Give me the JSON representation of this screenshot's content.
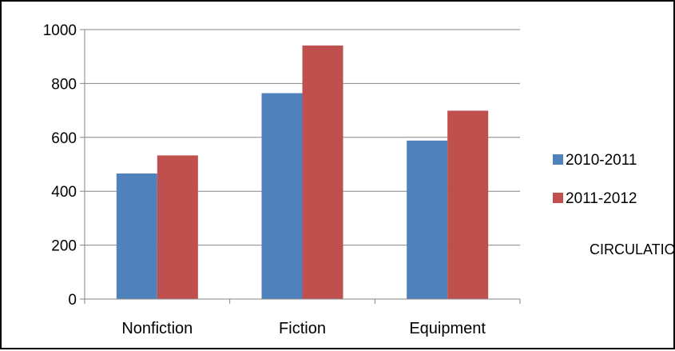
{
  "chart_data": {
    "type": "bar",
    "categories": [
      "Nonfiction",
      "Fiction",
      "Equipment"
    ],
    "series": [
      {
        "name": "2010-2011",
        "color": "#4F81BD",
        "values": [
          466,
          764,
          588
        ]
      },
      {
        "name": "2011-2012",
        "color": "#C0504D",
        "values": [
          533,
          941,
          699
        ]
      }
    ],
    "ylim": [
      0,
      1000
    ],
    "yticks": [
      0,
      200,
      400,
      600,
      800,
      1000
    ],
    "grid": true,
    "legend_placement": "right",
    "annotation": "CIRCULATION",
    "title": "",
    "xlabel": "",
    "ylabel": ""
  }
}
